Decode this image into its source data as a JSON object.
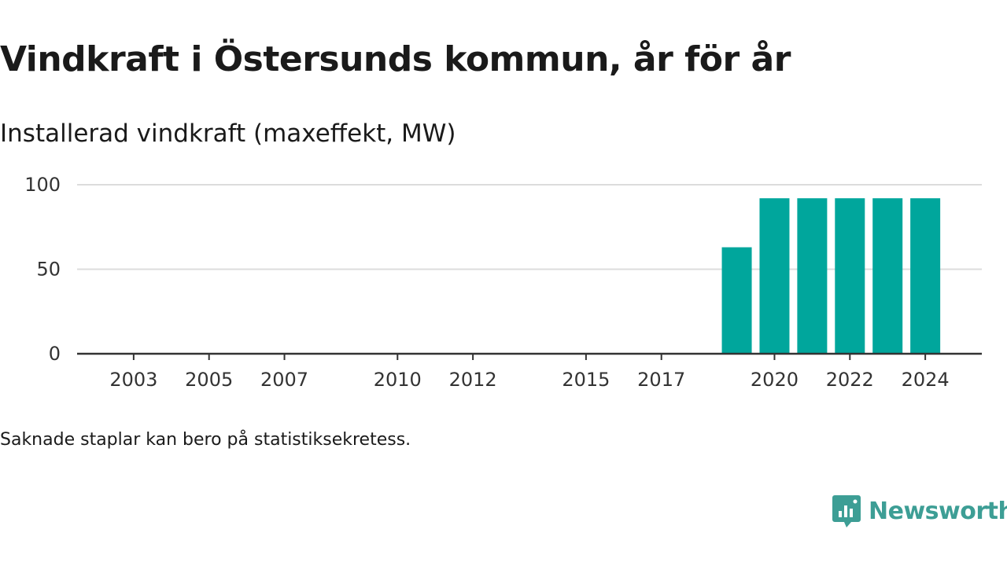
{
  "title": "Vindkraft i Östersunds kommun, år för år",
  "subtitle": "Installerad vindkraft (maxeffekt, MW)",
  "note": "Saknade staplar kan bero på statistiksekretess.",
  "brand": {
    "name": "Newsworthy",
    "logo_icon": "newsworthy-chart-bubble-icon"
  },
  "colors": {
    "bar": "#00A69C",
    "brand": "#3D9E95",
    "grid": "#dcdcdc",
    "axis": "#333333"
  },
  "chart_data": {
    "type": "bar",
    "x": [
      2003,
      2004,
      2005,
      2006,
      2007,
      2008,
      2009,
      2010,
      2011,
      2012,
      2013,
      2014,
      2015,
      2016,
      2017,
      2018,
      2019,
      2020,
      2021,
      2022,
      2023,
      2024
    ],
    "values": [
      0,
      0,
      0,
      0,
      0,
      0,
      0,
      0,
      0,
      0,
      0,
      0,
      0,
      0,
      0,
      0,
      63,
      92,
      92,
      92,
      92,
      92
    ],
    "x_tick_labels": [
      "2003",
      "2005",
      "2007",
      "2010",
      "2012",
      "2015",
      "2017",
      "2020",
      "2022",
      "2024"
    ],
    "y_ticks": [
      0,
      50,
      100
    ],
    "ylim": [
      0,
      100
    ],
    "grid": true,
    "legend": "none"
  }
}
